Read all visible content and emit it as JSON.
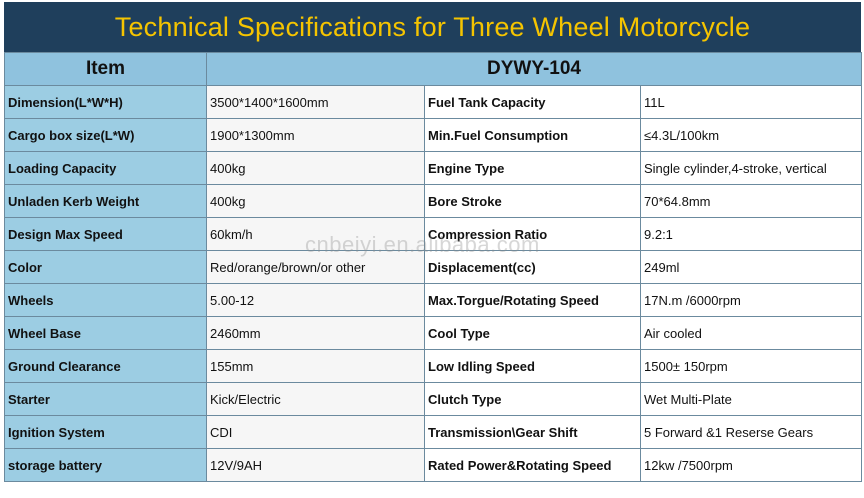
{
  "title": "Technical Specifications for Three Wheel Motorcycle",
  "header": {
    "item": "Item",
    "model": "DYWY-104"
  },
  "rows": [
    {
      "label": "Dimension(L*W*H)",
      "value": "3500*1400*1600mm",
      "label2": "Fuel Tank Capacity",
      "value2": "11L"
    },
    {
      "label": "Cargo box size(L*W)",
      "value": "1900*1300mm",
      "label2": "Min.Fuel Consumption",
      "value2": "≤4.3L/100km"
    },
    {
      "label": "Loading Capacity",
      "value": "400kg",
      "label2": "Engine Type",
      "value2": "Single cylinder,4-stroke, vertical"
    },
    {
      "label": "Unladen Kerb Weight",
      "value": "400kg",
      "label2": "Bore Stroke",
      "value2": "70*64.8mm"
    },
    {
      "label": "Design Max Speed",
      "value": "60km/h",
      "label2": "Compression Ratio",
      "value2": "9.2:1"
    },
    {
      "label": "Color",
      "value": "Red/orange/brown/or other",
      "label2": "Displacement(cc)",
      "value2": "249ml"
    },
    {
      "label": "Wheels",
      "value": "5.00-12",
      "label2": "Max.Torgue/Rotating Speed",
      "value2": "17N.m /6000rpm"
    },
    {
      "label": "Wheel Base",
      "value": "2460mm",
      "label2": "Cool Type",
      "value2": "Air cooled"
    },
    {
      "label": "Ground Clearance",
      "value": "155mm",
      "label2": "Low Idling Speed",
      "value2": "1500± 150rpm"
    },
    {
      "label": "Starter",
      "value": "Kick/Electric",
      "label2": "Clutch Type",
      "value2": "Wet Multi-Plate"
    },
    {
      "label": "Ignition System",
      "value": "CDI",
      "label2": "Transmission\\Gear Shift",
      "value2": "5 Forward &1 Reserse Gears"
    },
    {
      "label": "storage battery",
      "value": "12V/9AH",
      "label2": "Rated Power&Rotating Speed",
      "value2": "12kw /7500rpm"
    }
  ],
  "watermark": "cnbeiyi.en.alibaba.com",
  "colors": {
    "title_bg": "#1f3f5c",
    "title_text": "#f5c400",
    "label_bg": "#9ccde3",
    "header_bg": "#8fc2de"
  }
}
